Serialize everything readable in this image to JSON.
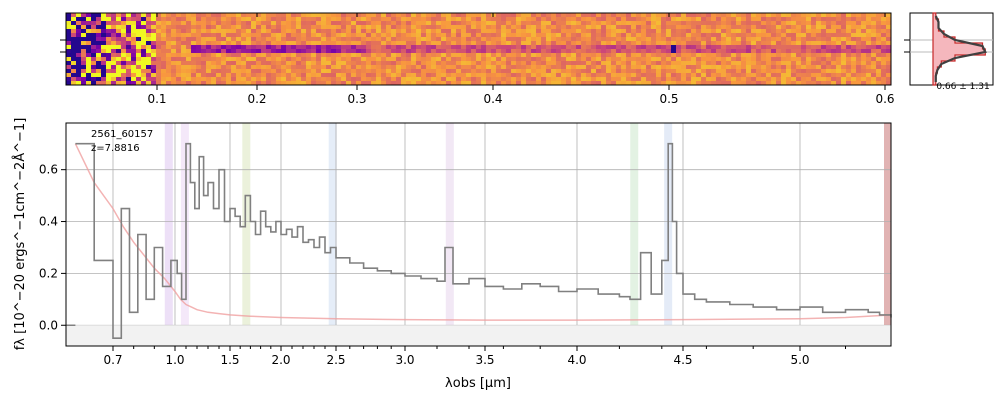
{
  "chart_data": [
    {
      "type": "heatmap",
      "name": "2d-spectrum",
      "x_ticks": [
        "0.1",
        "0.2",
        "0.3",
        "0.4",
        "0.5",
        "0.6"
      ],
      "colormap": "plasma"
    },
    {
      "type": "line",
      "name": "spatial-profile",
      "annotation": "0.66 ± 1.31",
      "profile": [
        0.05,
        0.1,
        0.1,
        0.2,
        0.4,
        0.9,
        0.95,
        0.4,
        0.15,
        0.08,
        0.05,
        0.05
      ]
    },
    {
      "type": "line",
      "name": "1d-spectrum",
      "annotation_id": "2561_60157",
      "annotation_z": "z=7.8816",
      "xlabel": "λobs [μm]",
      "ylabel": "fλ [10^−20 ergs^−1cm^−2Å^−1]",
      "ylim": [
        -0.08,
        0.78
      ],
      "y_ticks": [
        "0.0",
        "0.2",
        "0.4",
        "0.6"
      ],
      "x_ticks": [
        "0.7",
        "1.0",
        "1.5",
        "2.0",
        "2.5",
        "3.0",
        "3.5",
        "4.0",
        "4.5",
        "5.0"
      ],
      "grid": true,
      "series": [
        {
          "role": "flux",
          "color": "#808080",
          "x": [
            0.62,
            0.66,
            0.7,
            0.74,
            0.78,
            0.82,
            0.86,
            0.9,
            0.94,
            0.98,
            1.02,
            1.06,
            1.1,
            1.14,
            1.18,
            1.22,
            1.26,
            1.3,
            1.35,
            1.4,
            1.45,
            1.5,
            1.55,
            1.6,
            1.65,
            1.7,
            1.75,
            1.8,
            1.85,
            1.9,
            1.95,
            2.0,
            2.05,
            2.1,
            2.15,
            2.2,
            2.25,
            2.3,
            2.35,
            2.4,
            2.45,
            2.5,
            2.6,
            2.7,
            2.8,
            2.9,
            3.0,
            3.1,
            3.2,
            3.25,
            3.3,
            3.4,
            3.5,
            3.6,
            3.7,
            3.8,
            3.9,
            4.0,
            4.1,
            4.2,
            4.25,
            4.3,
            4.35,
            4.4,
            4.43,
            4.45,
            4.47,
            4.5,
            4.55,
            4.6,
            4.7,
            4.8,
            4.9,
            5.0,
            5.1,
            5.2,
            5.3,
            5.35,
            5.4
          ],
          "y": [
            0.7,
            0.25,
            -0.05,
            0.45,
            0.05,
            0.35,
            0.1,
            0.3,
            0.15,
            0.25,
            0.2,
            0.1,
            0.7,
            0.55,
            0.45,
            0.65,
            0.5,
            0.55,
            0.45,
            0.6,
            0.4,
            0.45,
            0.42,
            0.38,
            0.5,
            0.4,
            0.35,
            0.44,
            0.38,
            0.36,
            0.4,
            0.35,
            0.37,
            0.34,
            0.38,
            0.32,
            0.33,
            0.3,
            0.34,
            0.28,
            0.3,
            0.26,
            0.24,
            0.22,
            0.21,
            0.2,
            0.19,
            0.18,
            0.17,
            0.3,
            0.16,
            0.18,
            0.15,
            0.14,
            0.16,
            0.15,
            0.13,
            0.14,
            0.12,
            0.11,
            0.1,
            0.28,
            0.12,
            0.25,
            0.7,
            0.4,
            0.2,
            0.12,
            0.1,
            0.09,
            0.08,
            0.07,
            0.06,
            0.07,
            0.05,
            0.06,
            0.05,
            0.04,
            0.03
          ]
        },
        {
          "role": "error",
          "color": "#f0a0a0",
          "x": [
            0.62,
            0.66,
            0.7,
            0.75,
            0.8,
            0.85,
            0.9,
            0.95,
            1.0,
            1.05,
            1.1,
            1.15,
            1.2,
            1.3,
            1.4,
            1.5,
            1.7,
            2.0,
            2.5,
            3.0,
            3.5,
            4.0,
            4.5,
            5.0,
            5.2,
            5.4
          ],
          "y": [
            0.7,
            0.55,
            0.45,
            0.38,
            0.32,
            0.27,
            0.22,
            0.18,
            0.13,
            0.1,
            0.08,
            0.07,
            0.06,
            0.05,
            0.045,
            0.04,
            0.035,
            0.03,
            0.025,
            0.022,
            0.02,
            0.02,
            0.022,
            0.025,
            0.03,
            0.04
          ]
        }
      ],
      "line_bands": [
        0.97,
        1.09,
        1.66,
        2.47,
        3.28,
        4.27,
        4.43,
        5.4
      ]
    }
  ]
}
